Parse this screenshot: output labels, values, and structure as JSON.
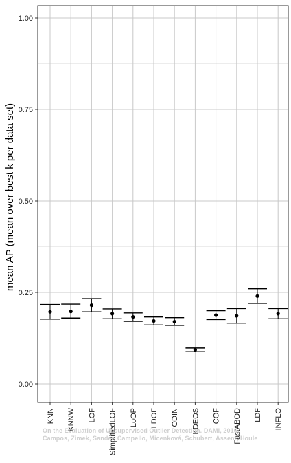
{
  "chart_data": {
    "type": "errorbar",
    "ylabel": "mean AP (mean over best k per data set)",
    "xlabel": "",
    "ylim": [
      0,
      1.05
    ],
    "yticks": [
      0.0,
      0.25,
      0.5,
      0.75,
      1.0
    ],
    "ytick_labels": [
      "0.00",
      "0.25",
      "0.50",
      "0.75",
      "1.00"
    ],
    "grid": true,
    "categories": [
      "KNN",
      "KNNW",
      "LOF",
      "SimplifiedLOF",
      "LoOP",
      "LDOF",
      "ODIN",
      "KDEOS",
      "COF",
      "FastABOD",
      "LDF",
      "INFLO"
    ],
    "series": [
      {
        "mean": [
          0.197,
          0.198,
          0.215,
          0.192,
          0.183,
          0.172,
          0.17,
          0.093,
          0.188,
          0.186,
          0.24,
          0.192
        ],
        "lower": [
          0.177,
          0.18,
          0.197,
          0.178,
          0.171,
          0.161,
          0.16,
          0.088,
          0.176,
          0.166,
          0.22,
          0.178
        ],
        "upper": [
          0.217,
          0.218,
          0.233,
          0.205,
          0.194,
          0.183,
          0.181,
          0.098,
          0.2,
          0.206,
          0.26,
          0.206
        ]
      }
    ]
  },
  "watermark": {
    "line1": "On the Evaluation of Unsupervised Outlier Detection. DAMI, 2016.",
    "line2": "Campos, Zimek, Sander, Campello, Micenková, Schubert, Assent, Houle"
  }
}
